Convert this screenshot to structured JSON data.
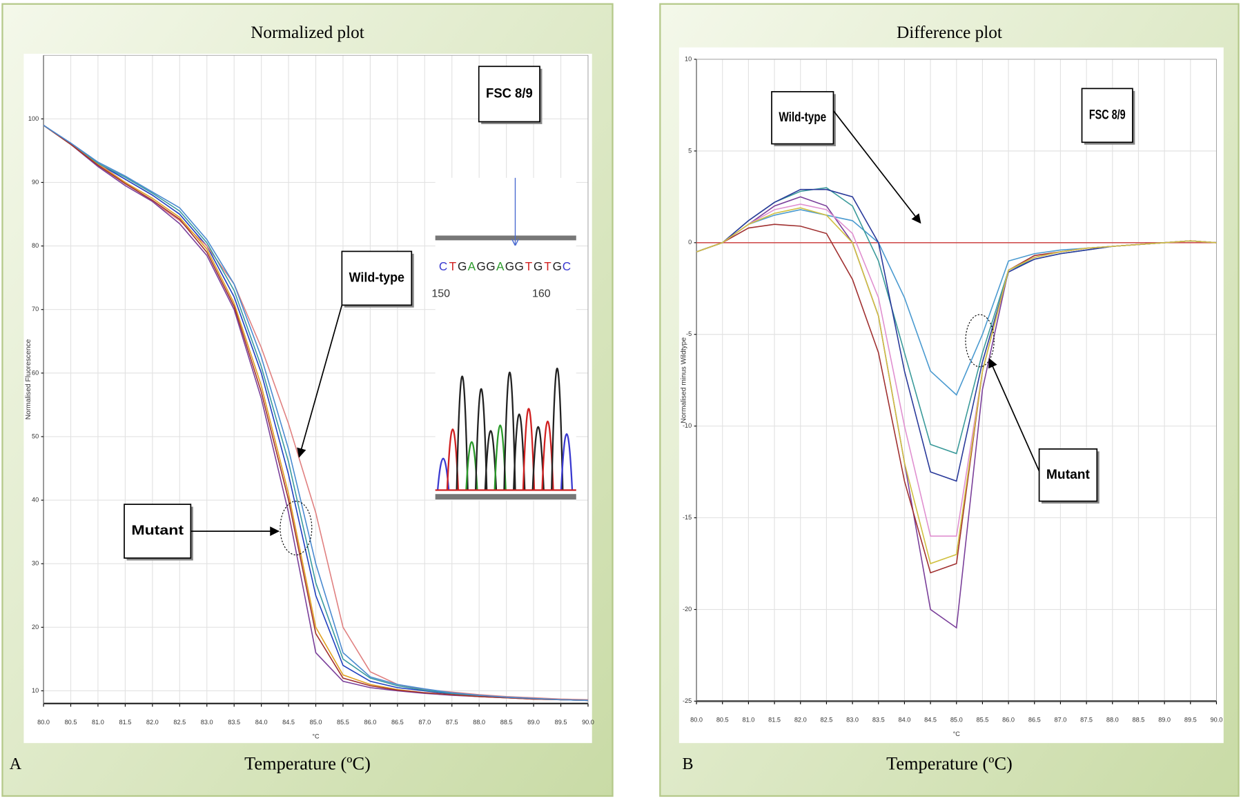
{
  "chart_data": [
    {
      "type": "line",
      "title": "Normalized plot",
      "xlabel": "Temperature (ºC)",
      "x_unit": "°C",
      "ylabel": "Normalised Fluorescence",
      "panel_label": "A",
      "annotations": [
        "FSC 8/9",
        "Wild-type",
        "Mutant"
      ],
      "inset": {
        "sequence": [
          "C",
          "T",
          "G",
          "A",
          "G",
          "G",
          "A",
          "G",
          "G",
          "T",
          "G",
          "T",
          "G",
          "C"
        ],
        "positions": [
          "150",
          "160"
        ]
      },
      "x": [
        80,
        80.5,
        81,
        81.5,
        82,
        82.5,
        83,
        83.5,
        84,
        84.5,
        85,
        85.5,
        86,
        86.5,
        87,
        87.5,
        88,
        88.5,
        89,
        89.5,
        90
      ],
      "xlim": [
        80,
        90
      ],
      "xticks": [
        {
          "value": 80,
          "label": "80.0"
        },
        {
          "value": 80.5,
          "label": "80.5"
        },
        {
          "value": 81,
          "label": "81.0"
        },
        {
          "value": 81.5,
          "label": "81.5"
        },
        {
          "value": 82,
          "label": "82.0"
        },
        {
          "value": 82.5,
          "label": "82.5"
        },
        {
          "value": 83,
          "label": "83.0"
        },
        {
          "value": 83.5,
          "label": "83.5"
        },
        {
          "value": 84,
          "label": "84.0"
        },
        {
          "value": 84.5,
          "label": "84.5"
        },
        {
          "value": 85,
          "label": "85.0"
        },
        {
          "value": 85.5,
          "label": "85.5"
        },
        {
          "value": 86,
          "label": "86.0"
        },
        {
          "value": 86.5,
          "label": "86.5"
        },
        {
          "value": 87,
          "label": "87.0"
        },
        {
          "value": 87.5,
          "label": "87.5"
        },
        {
          "value": 88,
          "label": "88.0"
        },
        {
          "value": 88.5,
          "label": "88.5"
        },
        {
          "value": 89,
          "label": "89.0"
        },
        {
          "value": 89.5,
          "label": "89.5"
        },
        {
          "value": 90,
          "label": "90.0"
        }
      ],
      "ylim": [
        8,
        110
      ],
      "yticks": [
        10,
        20,
        30,
        40,
        50,
        60,
        70,
        80,
        90,
        100
      ],
      "grid": true,
      "series": [
        {
          "color": "#1f3fbf",
          "values": [
            99,
            96,
            93,
            90.5,
            88,
            85,
            80,
            72,
            60,
            44,
            25,
            14,
            11.5,
            10.5,
            10,
            9.5,
            9.2,
            9,
            8.8,
            8.6,
            8.5
          ]
        },
        {
          "color": "#e08080",
          "values": [
            99,
            96,
            93,
            90,
            87,
            84,
            80,
            74,
            64,
            52,
            38,
            20,
            13,
            11,
            10.2,
            9.8,
            9.4,
            9.1,
            8.9,
            8.7,
            8.6
          ]
        },
        {
          "color": "#7a3f9a",
          "values": [
            99,
            96,
            92.5,
            89.5,
            87,
            83.5,
            78.5,
            70,
            56,
            38,
            16,
            11.5,
            10.5,
            10,
            9.6,
            9.3,
            9.1,
            8.9,
            8.7,
            8.6,
            8.5
          ]
        },
        {
          "color": "#3a9aa0",
          "values": [
            99,
            96,
            93,
            90.8,
            88.3,
            85.5,
            80.5,
            73,
            61,
            46,
            27,
            15,
            12,
            10.8,
            10.1,
            9.6,
            9.2,
            9,
            8.8,
            8.6,
            8.5
          ]
        },
        {
          "color": "#e0a020",
          "values": [
            99,
            96,
            92.8,
            90,
            87.5,
            84.5,
            79.5,
            71,
            58,
            41,
            20,
            12.5,
            11,
            10.2,
            9.7,
            9.4,
            9.1,
            8.9,
            8.7,
            8.6,
            8.5
          ]
        },
        {
          "color": "#a03030",
          "values": [
            99,
            96,
            92.7,
            89.8,
            87.2,
            84.2,
            79,
            70.5,
            57,
            40,
            19,
            12,
            10.8,
            10.1,
            9.7,
            9.4,
            9.1,
            8.9,
            8.7,
            8.6,
            8.5
          ]
        },
        {
          "color": "#4a8ad0",
          "values": [
            99,
            96.2,
            93.2,
            91,
            88.5,
            86,
            81,
            74,
            62.5,
            48,
            30,
            16,
            12.2,
            11,
            10.3,
            9.7,
            9.3,
            9,
            8.8,
            8.6,
            8.5
          ]
        }
      ]
    },
    {
      "type": "line",
      "title": "Difference plot",
      "xlabel": "Temperature (ºC)",
      "x_unit": "°C",
      "ylabel": "Normalised minus Wildtype",
      "panel_label": "B",
      "annotations": [
        "FSC 8/9",
        "Wild-type",
        "Mutant"
      ],
      "x": [
        80,
        80.5,
        81,
        81.5,
        82,
        82.5,
        83,
        83.5,
        84,
        84.5,
        85,
        85.5,
        86,
        86.5,
        87,
        87.5,
        88,
        88.5,
        89,
        89.5,
        90
      ],
      "xlim": [
        80,
        90
      ],
      "xticks": [
        {
          "value": 80,
          "label": "80.0"
        },
        {
          "value": 80.5,
          "label": "80.5"
        },
        {
          "value": 81,
          "label": "81.0"
        },
        {
          "value": 81.5,
          "label": "81.5"
        },
        {
          "value": 82,
          "label": "82.0"
        },
        {
          "value": 82.5,
          "label": "82.5"
        },
        {
          "value": 83,
          "label": "83.0"
        },
        {
          "value": 83.5,
          "label": "83.5"
        },
        {
          "value": 84,
          "label": "84.0"
        },
        {
          "value": 84.5,
          "label": "84.5"
        },
        {
          "value": 85,
          "label": "85.0"
        },
        {
          "value": 85.5,
          "label": "85.5"
        },
        {
          "value": 86,
          "label": "86.0"
        },
        {
          "value": 86.5,
          "label": "86.5"
        },
        {
          "value": 87,
          "label": "87.0"
        },
        {
          "value": 87.5,
          "label": "87.5"
        },
        {
          "value": 88,
          "label": "88.0"
        },
        {
          "value": 88.5,
          "label": "88.5"
        },
        {
          "value": 89,
          "label": "89.0"
        },
        {
          "value": 89.5,
          "label": "89.5"
        },
        {
          "value": 90,
          "label": "90.0"
        }
      ],
      "ylim": [
        -25,
        10
      ],
      "yticks": [
        -25,
        -20,
        -15,
        -10,
        -5,
        0,
        5,
        10
      ],
      "grid": true,
      "series": [
        {
          "color": "#d05050",
          "values": [
            0,
            0,
            0,
            0,
            0,
            0,
            0,
            0,
            0,
            0,
            0,
            0,
            0,
            0,
            0,
            0,
            0,
            0,
            0,
            0,
            0
          ]
        },
        {
          "color": "#7a3f9a",
          "values": [
            -0.5,
            0,
            1,
            2,
            2.5,
            2,
            0,
            -4,
            -12,
            -20,
            -21,
            -8,
            -1.5,
            -0.8,
            -0.5,
            -0.3,
            -0.2,
            -0.1,
            0,
            0.1,
            0
          ]
        },
        {
          "color": "#4a9ad0",
          "values": [
            -0.5,
            0,
            1,
            1.5,
            1.8,
            1.5,
            1.2,
            0,
            -3,
            -7,
            -8.3,
            -5,
            -1,
            -0.6,
            -0.4,
            -0.3,
            -0.2,
            -0.1,
            0,
            0.1,
            0
          ]
        },
        {
          "color": "#a03030",
          "values": [
            -0.5,
            0,
            0.8,
            1,
            0.9,
            0.5,
            -2,
            -6,
            -13,
            -18,
            -17.5,
            -7,
            -1.5,
            -0.7,
            -0.5,
            -0.3,
            -0.2,
            -0.1,
            0,
            0.1,
            0
          ]
        },
        {
          "color": "#3a9a9a",
          "values": [
            -0.5,
            0,
            1.2,
            2.2,
            2.8,
            3,
            2,
            -1,
            -6,
            -11,
            -11.5,
            -6,
            -1.5,
            -0.9,
            -0.6,
            -0.4,
            -0.2,
            -0.1,
            0,
            0.1,
            0
          ]
        },
        {
          "color": "#2a3a9a",
          "values": [
            -0.5,
            0,
            1.2,
            2.2,
            2.9,
            2.9,
            2.5,
            0,
            -7,
            -12.5,
            -13,
            -6.5,
            -1.6,
            -0.9,
            -0.6,
            -0.4,
            -0.2,
            -0.1,
            0,
            0.1,
            0
          ]
        },
        {
          "color": "#e090d0",
          "values": [
            -0.5,
            0,
            1,
            1.8,
            2.1,
            1.8,
            0.5,
            -3,
            -10,
            -16,
            -16,
            -7,
            -1.5,
            -0.8,
            -0.5,
            -0.3,
            -0.2,
            -0.1,
            0,
            0.1,
            0
          ]
        },
        {
          "color": "#d0c040",
          "values": [
            -0.5,
            0,
            1,
            1.6,
            1.9,
            1.5,
            0,
            -4,
            -12,
            -17.5,
            -17,
            -7,
            -1.5,
            -0.8,
            -0.5,
            -0.3,
            -0.2,
            -0.1,
            0,
            0.1,
            0
          ]
        }
      ]
    }
  ]
}
